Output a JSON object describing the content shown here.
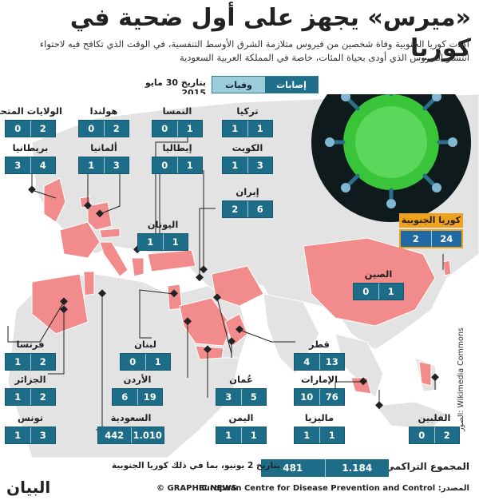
{
  "title": "«ميرس» يجهز على أول ضحية في كوريا",
  "subtitle": "أكدت كوريا الجنوبية وفاة شخصين من فيروس متلازمة الشرق الأوسط التنفسية، في الوقت الذي تكافح فيه لاحتواء انتشار الفيروس الذي أودى بحياة المئات، خاصة في المملكة العربية السعودية",
  "date_label": "بتاريخ 30 مايو 2015",
  "legend": {
    "cases": "إصابات",
    "deaths": "وفيات"
  },
  "countries": [
    {
      "name": "الولايات المتحدة",
      "deaths": "0",
      "cases": "2"
    },
    {
      "name": "هولندا",
      "deaths": "0",
      "cases": "2"
    },
    {
      "name": "النمسا",
      "deaths": "0",
      "cases": "1"
    },
    {
      "name": "تركيا",
      "deaths": "1",
      "cases": "1"
    },
    {
      "name": "بريطانيا",
      "deaths": "3",
      "cases": "4"
    },
    {
      "name": "ألمانيا",
      "deaths": "1",
      "cases": "3"
    },
    {
      "name": "إيطاليا",
      "deaths": "0",
      "cases": "1"
    },
    {
      "name": "الكويت",
      "deaths": "1",
      "cases": "3"
    },
    {
      "name": "إيران",
      "deaths": "2",
      "cases": "6"
    },
    {
      "name": "كوريا الجنوبية",
      "deaths": "2",
      "cases": "24"
    },
    {
      "name": "اليونان",
      "deaths": "1",
      "cases": "1"
    },
    {
      "name": "الصين",
      "deaths": "0",
      "cases": "1"
    },
    {
      "name": "فرنسا",
      "deaths": "1",
      "cases": "2"
    },
    {
      "name": "لبنان",
      "deaths": "0",
      "cases": "1"
    },
    {
      "name": "قطر",
      "deaths": "4",
      "cases": "13"
    },
    {
      "name": "الجزائر",
      "deaths": "1",
      "cases": "2"
    },
    {
      "name": "الأردن",
      "deaths": "6",
      "cases": "19"
    },
    {
      "name": "عُمان",
      "deaths": "3",
      "cases": "5"
    },
    {
      "name": "الإمارات",
      "deaths": "10",
      "cases": "76"
    },
    {
      "name": "تونس",
      "deaths": "1",
      "cases": "3"
    },
    {
      "name": "السعودية",
      "deaths": "442",
      "cases": "1.010"
    },
    {
      "name": "اليمن",
      "deaths": "1",
      "cases": "1"
    },
    {
      "name": "ماليزيا",
      "deaths": "1",
      "cases": "1"
    },
    {
      "name": "الفلبين",
      "deaths": "0",
      "cases": "2"
    }
  ],
  "credit": "الصور: Wikimedia Commons",
  "cumulative": {
    "label": "المجموع التراكمي",
    "deaths": "481",
    "cases": "1.184",
    "note": "بتاريخ 2 يونيو، بما في ذلك كوريا الجنوبية"
  },
  "source": "المصدر: European Centre for Disease Prevention and Control",
  "graphic_credit": "© GRAPHIC NEWS",
  "logo": "البيان",
  "colors": {
    "land": "#e3e3e3",
    "affected": "#f28b8b",
    "sea": "#ffffff",
    "box": "#1d6d88",
    "highlight": "#f0a11e",
    "virus": "#39c43a"
  }
}
